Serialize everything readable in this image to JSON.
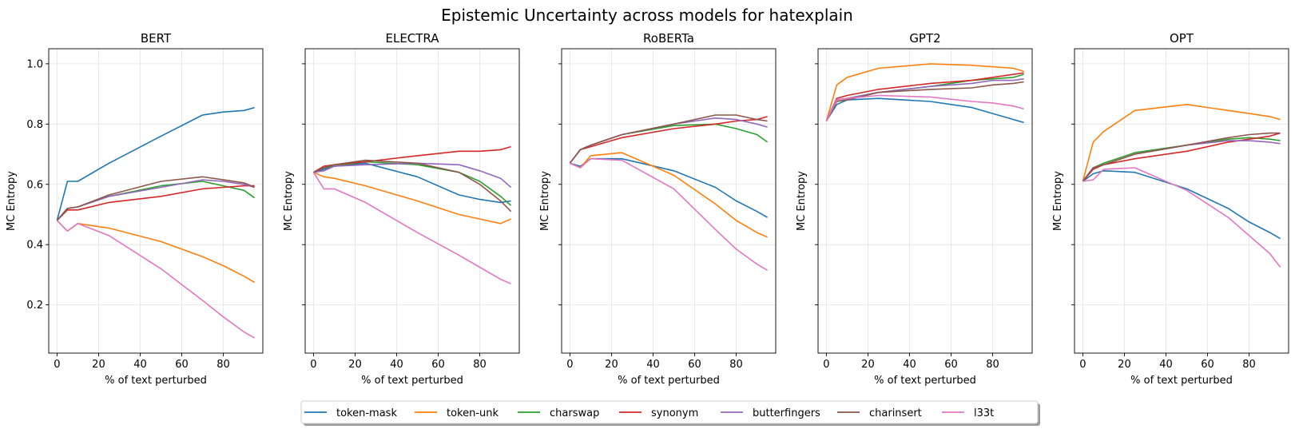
{
  "chart_data": {
    "type": "line",
    "suptitle": "Epistemic Uncertainty across models for hatexplain",
    "xlabel": "% of text perturbed",
    "ylabel": "MC Entropy",
    "xlim": [
      -4,
      99
    ],
    "ylim": [
      0.04,
      1.05
    ],
    "xticks": [
      0,
      20,
      40,
      60,
      80
    ],
    "yticks": [
      0.2,
      0.4,
      0.6,
      0.8,
      1.0
    ],
    "ytick_labels": [
      "0.2",
      "0.4",
      "0.6",
      "0.8",
      "1.0"
    ],
    "grid": true,
    "legend_location": "bottom-center",
    "series_names": [
      "token-mask",
      "token-unk",
      "charswap",
      "synonym",
      "butterfingers",
      "charinsert",
      "l33t"
    ],
    "colors": [
      "#1f77b4",
      "#ff7f0e",
      "#2ca02c",
      "#d62728",
      "#9467bd",
      "#8c564b",
      "#e377c2"
    ],
    "x": [
      0,
      5,
      10,
      25,
      50,
      70,
      80,
      90,
      95
    ],
    "panels": [
      {
        "title": "BERT",
        "series": [
          {
            "name": "token-mask",
            "values": [
              0.48,
              0.61,
              0.61,
              0.67,
              0.76,
              0.83,
              0.84,
              0.845,
              0.855
            ]
          },
          {
            "name": "token-unk",
            "values": [
              0.48,
              0.445,
              0.47,
              0.455,
              0.41,
              0.36,
              0.33,
              0.295,
              0.275
            ]
          },
          {
            "name": "charswap",
            "values": [
              0.48,
              0.52,
              0.525,
              0.56,
              0.595,
              0.61,
              0.595,
              0.58,
              0.555
            ]
          },
          {
            "name": "synonym",
            "values": [
              0.48,
              0.515,
              0.515,
              0.54,
              0.56,
              0.585,
              0.59,
              0.595,
              0.595
            ]
          },
          {
            "name": "butterfingers",
            "values": [
              0.48,
              0.52,
              0.525,
              0.56,
              0.59,
              0.615,
              0.61,
              0.6,
              0.59
            ]
          },
          {
            "name": "charinsert",
            "values": [
              0.48,
              0.52,
              0.525,
              0.565,
              0.61,
              0.625,
              0.615,
              0.605,
              0.59
            ]
          },
          {
            "name": "l33t",
            "values": [
              0.48,
              0.445,
              0.47,
              0.43,
              0.32,
              0.215,
              0.16,
              0.11,
              0.09
            ]
          }
        ]
      },
      {
        "title": "ELECTRA",
        "series": [
          {
            "name": "token-mask",
            "values": [
              0.64,
              0.65,
              0.66,
              0.67,
              0.625,
              0.565,
              0.55,
              0.54,
              0.545
            ]
          },
          {
            "name": "token-unk",
            "values": [
              0.64,
              0.625,
              0.62,
              0.595,
              0.545,
              0.5,
              0.485,
              0.47,
              0.485
            ]
          },
          {
            "name": "charswap",
            "values": [
              0.64,
              0.655,
              0.66,
              0.675,
              0.665,
              0.64,
              0.61,
              0.56,
              0.53
            ]
          },
          {
            "name": "synonym",
            "values": [
              0.64,
              0.66,
              0.665,
              0.675,
              0.695,
              0.71,
              0.71,
              0.715,
              0.725
            ]
          },
          {
            "name": "butterfingers",
            "values": [
              0.64,
              0.645,
              0.66,
              0.665,
              0.67,
              0.665,
              0.645,
              0.62,
              0.59
            ]
          },
          {
            "name": "charinsert",
            "values": [
              0.64,
              0.655,
              0.665,
              0.68,
              0.67,
              0.64,
              0.6,
              0.545,
              0.51
            ]
          },
          {
            "name": "l33t",
            "values": [
              0.64,
              0.585,
              0.585,
              0.54,
              0.44,
              0.365,
              0.325,
              0.285,
              0.27
            ]
          }
        ]
      },
      {
        "title": "RoBERTa",
        "series": [
          {
            "name": "token-mask",
            "values": [
              0.67,
              0.66,
              0.685,
              0.685,
              0.645,
              0.59,
              0.545,
              0.51,
              0.49
            ]
          },
          {
            "name": "token-unk",
            "values": [
              0.67,
              0.655,
              0.695,
              0.705,
              0.63,
              0.535,
              0.48,
              0.44,
              0.425
            ]
          },
          {
            "name": "charswap",
            "values": [
              0.67,
              0.715,
              0.73,
              0.765,
              0.795,
              0.8,
              0.785,
              0.765,
              0.74
            ]
          },
          {
            "name": "synonym",
            "values": [
              0.67,
              0.715,
              0.725,
              0.755,
              0.785,
              0.8,
              0.81,
              0.815,
              0.825
            ]
          },
          {
            "name": "butterfingers",
            "values": [
              0.67,
              0.715,
              0.73,
              0.765,
              0.8,
              0.82,
              0.815,
              0.8,
              0.79
            ]
          },
          {
            "name": "charinsert",
            "values": [
              0.67,
              0.715,
              0.73,
              0.765,
              0.8,
              0.83,
              0.83,
              0.815,
              0.81
            ]
          },
          {
            "name": "l33t",
            "values": [
              0.67,
              0.655,
              0.685,
              0.68,
              0.585,
              0.45,
              0.385,
              0.335,
              0.315
            ]
          }
        ]
      },
      {
        "title": "GPT2",
        "series": [
          {
            "name": "token-mask",
            "values": [
              0.81,
              0.865,
              0.88,
              0.885,
              0.875,
              0.855,
              0.835,
              0.815,
              0.805
            ]
          },
          {
            "name": "token-unk",
            "values": [
              0.81,
              0.93,
              0.955,
              0.985,
              1.0,
              0.995,
              0.99,
              0.985,
              0.975
            ]
          },
          {
            "name": "charswap",
            "values": [
              0.81,
              0.88,
              0.885,
              0.905,
              0.925,
              0.945,
              0.95,
              0.955,
              0.965
            ]
          },
          {
            "name": "synonym",
            "values": [
              0.81,
              0.885,
              0.895,
              0.915,
              0.935,
              0.945,
              0.955,
              0.965,
              0.97
            ]
          },
          {
            "name": "butterfingers",
            "values": [
              0.81,
              0.88,
              0.885,
              0.905,
              0.925,
              0.935,
              0.945,
              0.945,
              0.95
            ]
          },
          {
            "name": "charinsert",
            "values": [
              0.81,
              0.875,
              0.88,
              0.905,
              0.915,
              0.92,
              0.93,
              0.935,
              0.94
            ]
          },
          {
            "name": "l33t",
            "values": [
              0.81,
              0.88,
              0.885,
              0.895,
              0.89,
              0.875,
              0.87,
              0.86,
              0.85
            ]
          }
        ]
      },
      {
        "title": "OPT",
        "series": [
          {
            "name": "token-mask",
            "values": [
              0.61,
              0.635,
              0.645,
              0.64,
              0.585,
              0.52,
              0.475,
              0.44,
              0.42
            ]
          },
          {
            "name": "token-unk",
            "values": [
              0.61,
              0.74,
              0.775,
              0.845,
              0.865,
              0.845,
              0.835,
              0.825,
              0.815
            ]
          },
          {
            "name": "charswap",
            "values": [
              0.61,
              0.655,
              0.67,
              0.705,
              0.73,
              0.75,
              0.755,
              0.75,
              0.745
            ]
          },
          {
            "name": "synonym",
            "values": [
              0.61,
              0.65,
              0.665,
              0.685,
              0.71,
              0.74,
              0.75,
              0.76,
              0.77
            ]
          },
          {
            "name": "butterfingers",
            "values": [
              0.61,
              0.655,
              0.665,
              0.7,
              0.73,
              0.745,
              0.745,
              0.74,
              0.735
            ]
          },
          {
            "name": "charinsert",
            "values": [
              0.61,
              0.655,
              0.665,
              0.7,
              0.73,
              0.755,
              0.765,
              0.77,
              0.77
            ]
          },
          {
            "name": "l33t",
            "values": [
              0.61,
              0.615,
              0.65,
              0.655,
              0.58,
              0.49,
              0.43,
              0.37,
              0.325
            ]
          }
        ]
      }
    ]
  }
}
